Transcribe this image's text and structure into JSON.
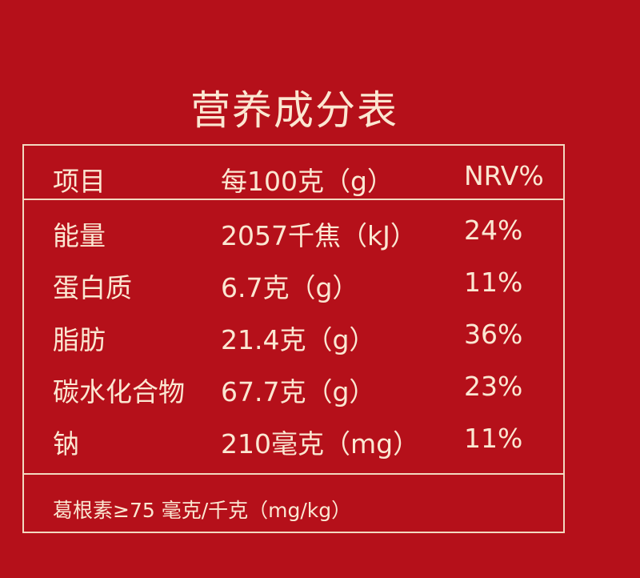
{
  "title": "营养成分表",
  "header": {
    "item": "项目",
    "per100": "每100克（g）",
    "nrv": "NRV%"
  },
  "rows": [
    {
      "item": "能量",
      "per100": "2057千焦（kJ）",
      "nrv": "24%"
    },
    {
      "item": "蛋白质",
      "per100": "6.7克（g）",
      "nrv": "11%"
    },
    {
      "item": "脂肪",
      "per100": "21.4克（g）",
      "nrv": "36%"
    },
    {
      "item": "碳水化合物",
      "per100": "67.7克（g）",
      "nrv": "23%"
    },
    {
      "item": "钠",
      "per100": "210毫克（mg）",
      "nrv": "11%"
    }
  ],
  "footnote": "葛根素≥75 毫克/千克（mg/kg）",
  "colors": {
    "background": "#b5101a",
    "text": "#fbe7d2"
  }
}
